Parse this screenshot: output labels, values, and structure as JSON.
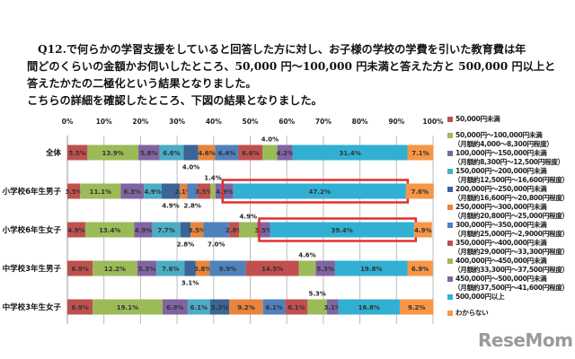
{
  "intro": [
    "Q12.で何らかの学習支援をしていると回答した方に対し、お子様の学校の学費を引いた教育費は年",
    "間どのくらいの金額かお伺いしたところ、50,000 円～100,000 円未満と答えた方と 500,000 円以上と",
    "答えたかたの二極化という結果となりました。",
    "こちらの詳細を確認したところ、下図の結果となりました。"
  ],
  "chart_data": {
    "type": "bar",
    "orientation": "horizontal",
    "stacked": true,
    "xlim": [
      0,
      100
    ],
    "xticks": [
      "0%",
      "10%",
      "20%",
      "30%",
      "40%",
      "50%",
      "60%",
      "70%",
      "80%",
      "90%",
      "100%"
    ],
    "grid": true,
    "legend_placement": "right",
    "categories": [
      "全体",
      "小学校6年生男子",
      "小学校6年生女子",
      "中学校3年生男子",
      "中学校3年生女子"
    ],
    "series": [
      {
        "name": "50,000円未満",
        "sub": "",
        "color": "#c0504d",
        "values": [
          5.5,
          3.5,
          4.9,
          6.9,
          6.9
        ]
      },
      {
        "name": "50,000円～100,000円未満",
        "sub": "（月額約4,000～8,300円程度）",
        "color": "#9bbb59",
        "values": [
          13.9,
          11.1,
          13.4,
          12.2,
          19.1
        ]
      },
      {
        "name": "100,000円～150,000円未満",
        "sub": "（月額約8,300円～12,500円程度）",
        "color": "#8064a2",
        "values": [
          5.8,
          6.3,
          4.9,
          5.3,
          6.9
        ]
      },
      {
        "name": "150,000円～200,000円未満",
        "sub": "（月額約12,500円～16,600円程度）",
        "color": "#4bacc6",
        "values": [
          6.6,
          4.9,
          7.7,
          7.6,
          6.1
        ]
      },
      {
        "name": "200,000円～250,000円未満",
        "sub": "（月額約16,600円～20,800円程度）",
        "color": "#3a6596",
        "values": [
          4.0,
          4.9,
          2.8,
          3.1,
          5.3
        ]
      },
      {
        "name": "250,000円～300,000円未満",
        "sub": "（月額約20,800円～25,000円程度）",
        "color": "#e8843c",
        "values": [
          4.6,
          2.1,
          3.5,
          3.8,
          9.2
        ]
      },
      {
        "name": "300,000円～350,000円未満",
        "sub": "（月額約25,000円～2,9000円程度）",
        "color": "#4f81bd",
        "values": [
          6.4,
          2.8,
          7.0,
          9.9,
          6.1
        ]
      },
      {
        "name": "350,000円～400,000円未満",
        "sub": "（月額約29,000円～33,300円程度）",
        "color": "#c0504d",
        "values": [
          6.6,
          3.5,
          2.8,
          14.5,
          6.1
        ]
      },
      {
        "name": "400,000円～450,000円未満",
        "sub": "（月額約33,300円～37,500円程度）",
        "color": "#9bbb59",
        "values": [
          4.0,
          1.4,
          4.9,
          4.6,
          5.3
        ]
      },
      {
        "name": "450,000円～500,000円未満",
        "sub": "（月額約37,500円～41,600円程度）",
        "color": "#8064a2",
        "values": [
          4.2,
          4.9,
          3.5,
          5.3,
          3.1
        ]
      },
      {
        "name": "500,000円以上",
        "sub": "",
        "color": "#31b0d3",
        "values": [
          31.4,
          47.2,
          39.4,
          19.8,
          16.8
        ]
      },
      {
        "name": "わからない",
        "sub": "",
        "color": "#f79646",
        "values": [
          7.1,
          7.6,
          4.9,
          6.9,
          9.2
        ]
      }
    ],
    "highlighted": [
      {
        "category": "小学校6年生男子",
        "series": "500,000円以上"
      },
      {
        "category": "小学校6年生女子",
        "series": "500,000円以上"
      }
    ],
    "highlight_color": "#e03030"
  },
  "watermark": "ReseMom"
}
